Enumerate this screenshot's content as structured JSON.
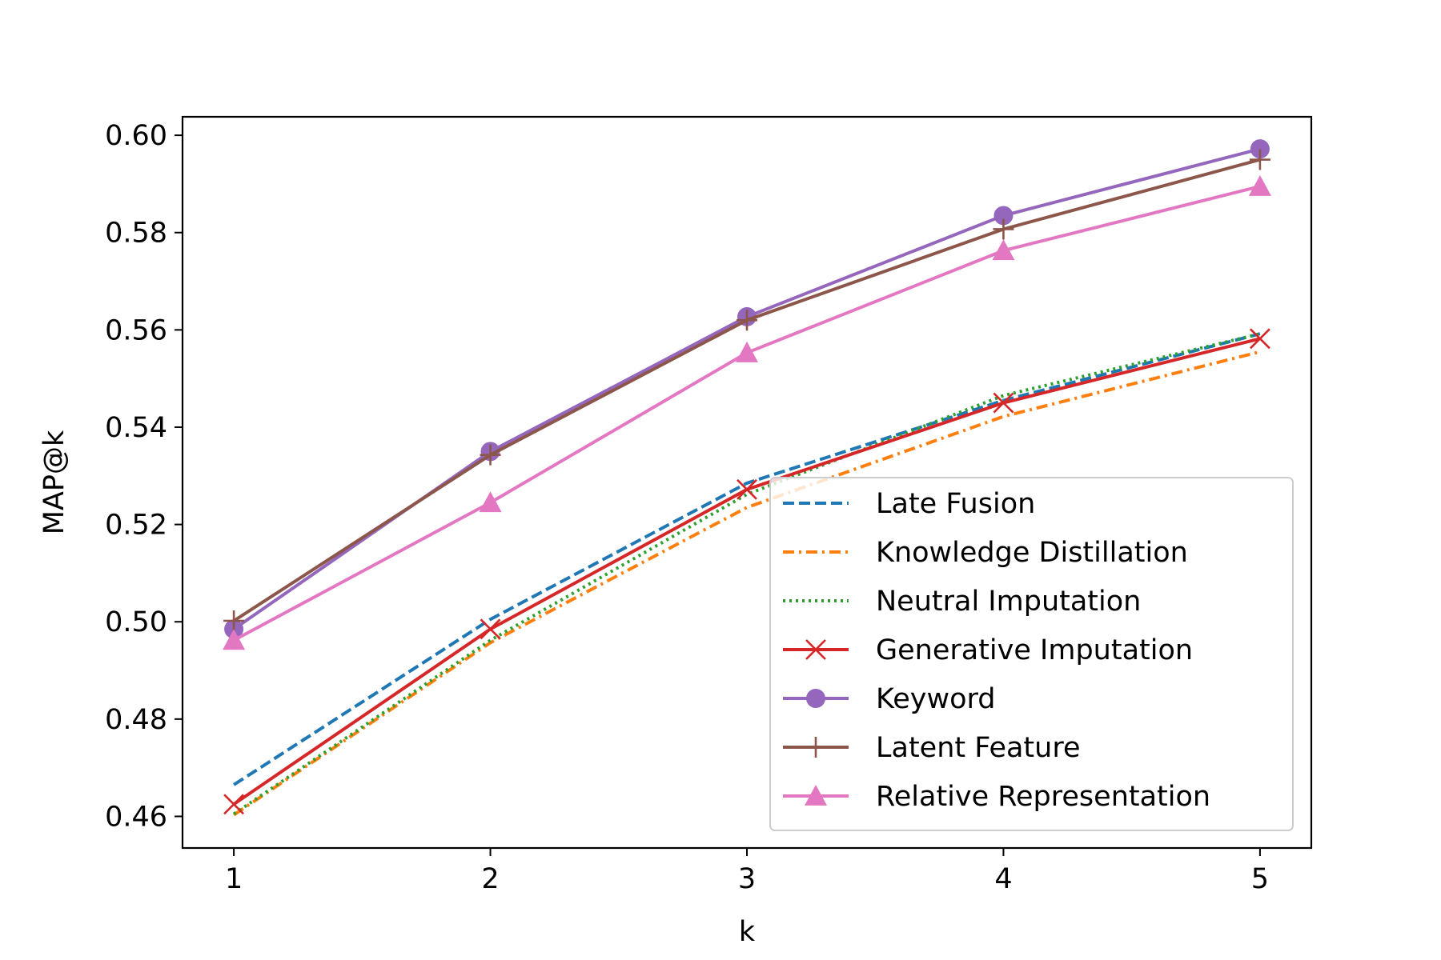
{
  "chart_data": {
    "type": "line",
    "title": "",
    "xlabel": "k",
    "ylabel": "MAP@k",
    "x": [
      1,
      2,
      3,
      4,
      5
    ],
    "xticks": [
      "1",
      "2",
      "3",
      "4",
      "5"
    ],
    "xlim": [
      0.8,
      5.2
    ],
    "ylim": [
      0.4535,
      0.6038
    ],
    "yticks": [
      "0.46",
      "0.48",
      "0.50",
      "0.52",
      "0.54",
      "0.56",
      "0.58",
      "0.60"
    ],
    "ytick_values": [
      0.46,
      0.48,
      0.5,
      0.52,
      0.54,
      0.56,
      0.58,
      0.6
    ],
    "grid": false,
    "legend_position": "lower-right",
    "series": [
      {
        "name": "Late Fusion",
        "values": [
          0.4665,
          0.5005,
          0.5285,
          0.5455,
          0.5592
        ],
        "color": "#1f77b4",
        "dash": "dashed",
        "marker": "none"
      },
      {
        "name": "Knowledge Distillation",
        "values": [
          0.4603,
          0.4957,
          0.5235,
          0.5422,
          0.5555
        ],
        "color": "#ff7f0e",
        "dash": "dashdot",
        "marker": "none"
      },
      {
        "name": "Neutral Imputation",
        "values": [
          0.4605,
          0.4962,
          0.5262,
          0.5465,
          0.5592
        ],
        "color": "#2ca02c",
        "dash": "dotted",
        "marker": "none"
      },
      {
        "name": "Generative Imputation",
        "values": [
          0.4625,
          0.4985,
          0.5272,
          0.545,
          0.5582
        ],
        "color": "#d62728",
        "dash": "solid",
        "marker": "x"
      },
      {
        "name": "Keyword",
        "values": [
          0.4985,
          0.535,
          0.5627,
          0.5835,
          0.5972
        ],
        "color": "#9467bd",
        "dash": "solid",
        "marker": "circle"
      },
      {
        "name": "Latent Feature",
        "values": [
          0.5002,
          0.5343,
          0.562,
          0.5807,
          0.595
        ],
        "color": "#8c564b",
        "dash": "solid",
        "marker": "plus"
      },
      {
        "name": "Relative Representation",
        "values": [
          0.4962,
          0.5245,
          0.5553,
          0.5763,
          0.5895
        ],
        "color": "#e377c2",
        "dash": "solid",
        "marker": "triangle"
      }
    ]
  }
}
